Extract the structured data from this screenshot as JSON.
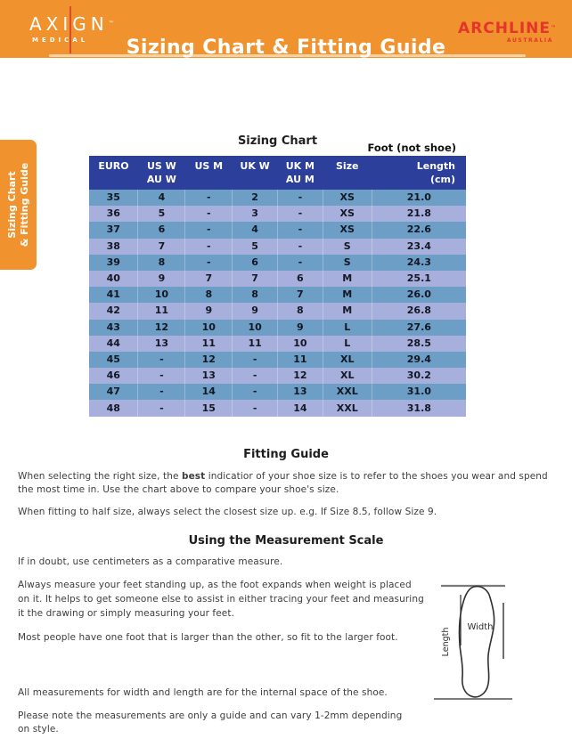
{
  "header": {
    "brand_left": {
      "name": "AXIGN",
      "tm": "™",
      "sub": "MEDICAL"
    },
    "title": "Sizing Chart & Fitting Guide",
    "brand_right": {
      "name": "ARCHLINE",
      "tm": "™",
      "sub": "AUSTRALIA"
    }
  },
  "side_tab": {
    "label": "Sizing Chart\n& Fitting Guide"
  },
  "sizing_chart": {
    "title": "Sizing Chart",
    "foot_note": "Foot (not shoe)",
    "columns": [
      "EURO",
      "US W\nAU W",
      "US M",
      "UK W",
      "UK M\nAU M",
      "Size",
      "Length\n(cm)"
    ],
    "rows": [
      [
        "35",
        "4",
        "-",
        "2",
        "-",
        "XS",
        "21.0"
      ],
      [
        "36",
        "5",
        "-",
        "3",
        "-",
        "XS",
        "21.8"
      ],
      [
        "37",
        "6",
        "-",
        "4",
        "-",
        "XS",
        "22.6"
      ],
      [
        "38",
        "7",
        "-",
        "5",
        "-",
        "S",
        "23.4"
      ],
      [
        "39",
        "8",
        "-",
        "6",
        "-",
        "S",
        "24.3"
      ],
      [
        "40",
        "9",
        "7",
        "7",
        "6",
        "M",
        "25.1"
      ],
      [
        "41",
        "10",
        "8",
        "8",
        "7",
        "M",
        "26.0"
      ],
      [
        "42",
        "11",
        "9",
        "9",
        "8",
        "M",
        "26.8"
      ],
      [
        "43",
        "12",
        "10",
        "10",
        "9",
        "L",
        "27.6"
      ],
      [
        "44",
        "13",
        "11",
        "11",
        "10",
        "L",
        "28.5"
      ],
      [
        "45",
        "-",
        "12",
        "-",
        "11",
        "XL",
        "29.4"
      ],
      [
        "46",
        "-",
        "13",
        "-",
        "12",
        "XL",
        "30.2"
      ],
      [
        "47",
        "-",
        "14",
        "-",
        "13",
        "XXL",
        "31.0"
      ],
      [
        "48",
        "-",
        "15",
        "-",
        "14",
        "XXL",
        "31.8"
      ]
    ]
  },
  "fitting_guide": {
    "title": "Fitting Guide",
    "p1_before": "When selecting the right size, the ",
    "p1_bold": "best",
    "p1_after": " indicatior of your shoe size is to refer to the shoes you wear and spend\nthe most time in. Use the chart above to compare your shoe's size.",
    "p2": "When fitting to half size, always select the closest size up. e.g. If Size 8.5, follow Size 9."
  },
  "measurement": {
    "title": "Using the Measurement Scale",
    "p1": "If in doubt, use centimeters as a comparative measure.",
    "p2": "Always measure your feet standing up, as the foot expands when weight is placed\non it. It helps to get someone else to assist in either tracing your feet and measuring\nit the drawing or simply measuring your feet.",
    "p3": "Most people have one foot that is larger than the other, so fit to the larger foot.",
    "p4": "All measurements for width and length are for the internal space of the shoe.",
    "p5": "Please note the measurements are only a guide and can vary 1-2mm depending\non style.",
    "diagram": {
      "width_label": "Width",
      "length_label": "Length"
    }
  },
  "colors": {
    "header_orange": "#F0922D",
    "table_header_navy": "#2C3F9B",
    "row_blue": "#6C9EC6",
    "row_periwinkle": "#A7AFDC",
    "brand_red": "#E5352B",
    "body_text": "#3D3D3D"
  }
}
